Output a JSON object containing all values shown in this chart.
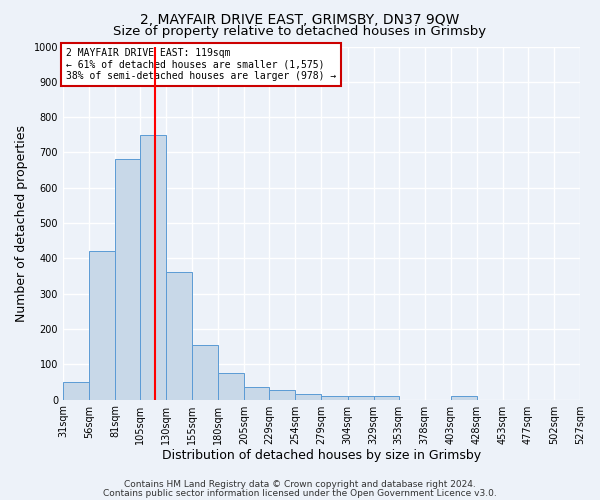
{
  "title": "2, MAYFAIR DRIVE EAST, GRIMSBY, DN37 9QW",
  "subtitle": "Size of property relative to detached houses in Grimsby",
  "xlabel": "Distribution of detached houses by size in Grimsby",
  "ylabel": "Number of detached properties",
  "bar_values": [
    50,
    420,
    680,
    750,
    360,
    155,
    75,
    37,
    27,
    17,
    10,
    10,
    10,
    0,
    0,
    10,
    0,
    0,
    0,
    0
  ],
  "bin_edges": [
    31,
    56,
    81,
    105,
    130,
    155,
    180,
    205,
    229,
    254,
    279,
    304,
    329,
    353,
    378,
    403,
    428,
    453,
    477,
    502,
    527
  ],
  "tick_labels": [
    "31sqm",
    "56sqm",
    "81sqm",
    "105sqm",
    "130sqm",
    "155sqm",
    "180sqm",
    "205sqm",
    "229sqm",
    "254sqm",
    "279sqm",
    "304sqm",
    "329sqm",
    "353sqm",
    "378sqm",
    "403sqm",
    "428sqm",
    "453sqm",
    "477sqm",
    "502sqm",
    "527sqm"
  ],
  "bar_color": "#c8d8e8",
  "bar_edge_color": "#5b9bd5",
  "red_line_x": 119,
  "ylim": [
    0,
    1000
  ],
  "yticks": [
    0,
    100,
    200,
    300,
    400,
    500,
    600,
    700,
    800,
    900,
    1000
  ],
  "annotation_title": "2 MAYFAIR DRIVE EAST: 119sqm",
  "annotation_line1": "← 61% of detached houses are smaller (1,575)",
  "annotation_line2": "38% of semi-detached houses are larger (978) →",
  "annotation_box_color": "#ffffff",
  "annotation_box_edge": "#cc0000",
  "footnote1": "Contains HM Land Registry data © Crown copyright and database right 2024.",
  "footnote2": "Contains public sector information licensed under the Open Government Licence v3.0.",
  "bg_color": "#edf2f9",
  "plot_bg_color": "#edf2f9",
  "grid_color": "#ffffff",
  "title_fontsize": 10,
  "subtitle_fontsize": 9.5,
  "axis_label_fontsize": 9,
  "tick_fontsize": 7,
  "annotation_fontsize": 7,
  "footnote_fontsize": 6.5
}
